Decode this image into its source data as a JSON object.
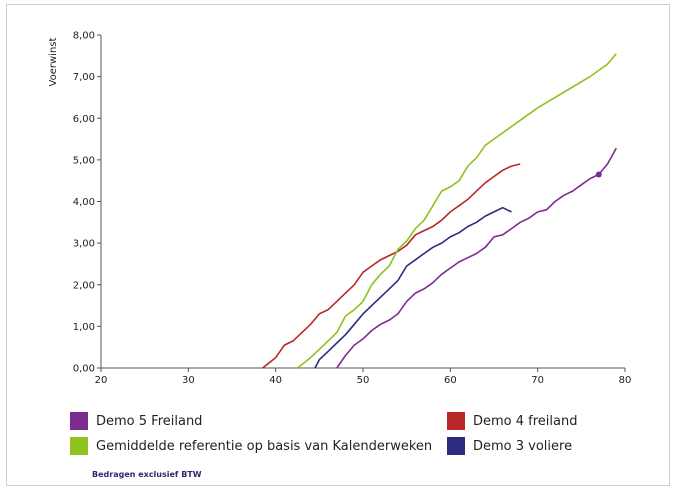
{
  "chart_data": {
    "type": "line",
    "ylabel": "Voerwinst",
    "xlabel": "",
    "xlim": [
      20,
      80
    ],
    "ylim": [
      0,
      8
    ],
    "xticks": [
      "20",
      "30",
      "40",
      "50",
      "60",
      "70",
      "80"
    ],
    "yticks": [
      "0,00",
      "1,00",
      "2,00",
      "3,00",
      "4,00",
      "5,00",
      "6,00",
      "7,00",
      "8,00"
    ],
    "grid": false,
    "legend_position": "bottom",
    "series": [
      {
        "name": "Demo 5 Freiland",
        "color": "#7b2d8e",
        "points": [
          [
            47,
            0
          ],
          [
            48,
            0.3
          ],
          [
            49,
            0.55
          ],
          [
            50,
            0.7
          ],
          [
            51,
            0.9
          ],
          [
            52,
            1.05
          ],
          [
            53,
            1.15
          ],
          [
            54,
            1.3
          ],
          [
            55,
            1.6
          ],
          [
            56,
            1.8
          ],
          [
            57,
            1.9
          ],
          [
            58,
            2.05
          ],
          [
            59,
            2.25
          ],
          [
            60,
            2.4
          ],
          [
            61,
            2.55
          ],
          [
            62,
            2.65
          ],
          [
            63,
            2.75
          ],
          [
            64,
            2.9
          ],
          [
            65,
            3.15
          ],
          [
            66,
            3.2
          ],
          [
            67,
            3.35
          ],
          [
            68,
            3.5
          ],
          [
            69,
            3.6
          ],
          [
            70,
            3.75
          ],
          [
            71,
            3.8
          ],
          [
            72,
            4.0
          ],
          [
            73,
            4.15
          ],
          [
            74,
            4.25
          ],
          [
            75,
            4.4
          ],
          [
            76,
            4.55
          ],
          [
            77,
            4.65
          ],
          [
            78,
            4.9
          ],
          [
            79,
            5.28
          ]
        ],
        "marker": [
          77,
          4.65
        ]
      },
      {
        "name": "Demo 4 freiland",
        "color": "#b8282a",
        "points": [
          [
            38.5,
            0
          ],
          [
            40,
            0.25
          ],
          [
            41,
            0.55
          ],
          [
            42,
            0.65
          ],
          [
            43,
            0.85
          ],
          [
            44,
            1.05
          ],
          [
            45,
            1.3
          ],
          [
            46,
            1.4
          ],
          [
            47,
            1.6
          ],
          [
            48,
            1.8
          ],
          [
            49,
            2.0
          ],
          [
            50,
            2.3
          ],
          [
            51,
            2.45
          ],
          [
            52,
            2.6
          ],
          [
            53,
            2.7
          ],
          [
            54,
            2.8
          ],
          [
            55,
            2.95
          ],
          [
            56,
            3.2
          ],
          [
            57,
            3.3
          ],
          [
            58,
            3.4
          ],
          [
            59,
            3.55
          ],
          [
            60,
            3.75
          ],
          [
            61,
            3.9
          ],
          [
            62,
            4.05
          ],
          [
            63,
            4.25
          ],
          [
            64,
            4.45
          ],
          [
            65,
            4.6
          ],
          [
            66,
            4.75
          ],
          [
            67,
            4.85
          ],
          [
            68,
            4.9
          ]
        ]
      },
      {
        "name": "Gemiddelde referentie op basis van Kalenderweken",
        "color": "#8dc21f",
        "points": [
          [
            42.5,
            0
          ],
          [
            44,
            0.25
          ],
          [
            45,
            0.45
          ],
          [
            46,
            0.65
          ],
          [
            47,
            0.85
          ],
          [
            48,
            1.25
          ],
          [
            49,
            1.4
          ],
          [
            50,
            1.6
          ],
          [
            51,
            2.0
          ],
          [
            52,
            2.25
          ],
          [
            53,
            2.45
          ],
          [
            54,
            2.85
          ],
          [
            55,
            3.05
          ],
          [
            56,
            3.35
          ],
          [
            57,
            3.55
          ],
          [
            58,
            3.9
          ],
          [
            59,
            4.25
          ],
          [
            60,
            4.35
          ],
          [
            61,
            4.5
          ],
          [
            62,
            4.85
          ],
          [
            63,
            5.05
          ],
          [
            64,
            5.35
          ],
          [
            65,
            5.5
          ],
          [
            66,
            5.65
          ],
          [
            68,
            5.95
          ],
          [
            70,
            6.25
          ],
          [
            72,
            6.5
          ],
          [
            74,
            6.75
          ],
          [
            76,
            7.0
          ],
          [
            78,
            7.3
          ],
          [
            79,
            7.55
          ]
        ]
      },
      {
        "name": "Demo 3 voliere",
        "color": "#2e2a7e",
        "points": [
          [
            44.5,
            0
          ],
          [
            45,
            0.2
          ],
          [
            46,
            0.4
          ],
          [
            47,
            0.6
          ],
          [
            48,
            0.8
          ],
          [
            49,
            1.05
          ],
          [
            50,
            1.3
          ],
          [
            51,
            1.5
          ],
          [
            52,
            1.7
          ],
          [
            53,
            1.9
          ],
          [
            54,
            2.1
          ],
          [
            55,
            2.45
          ],
          [
            56,
            2.6
          ],
          [
            57,
            2.75
          ],
          [
            58,
            2.9
          ],
          [
            59,
            3.0
          ],
          [
            60,
            3.15
          ],
          [
            61,
            3.25
          ],
          [
            62,
            3.4
          ],
          [
            63,
            3.5
          ],
          [
            64,
            3.65
          ],
          [
            65,
            3.75
          ],
          [
            66,
            3.85
          ],
          [
            67,
            3.75
          ]
        ]
      }
    ]
  },
  "legend": {
    "items": [
      {
        "label": "Demo 5 Freiland",
        "color": "#7b2d8e"
      },
      {
        "label": "Demo 4 freiland",
        "color": "#b8282a"
      },
      {
        "label": "Gemiddelde referentie op basis van Kalenderweken",
        "color": "#8dc21f"
      },
      {
        "label": "Demo 3 voliere",
        "color": "#2e2a7e"
      }
    ]
  },
  "footnote": "Bedragen exclusief BTW"
}
